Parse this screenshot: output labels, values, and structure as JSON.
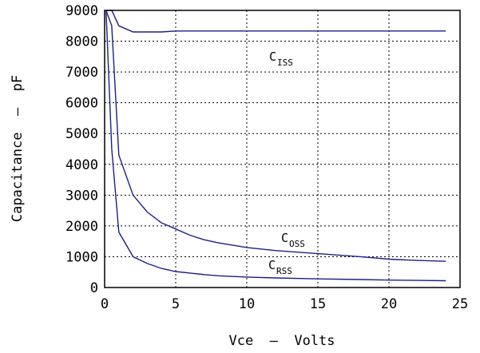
{
  "chart_data": {
    "type": "line",
    "title": "",
    "xlabel": "Vce  —  Volts",
    "ylabel": "Capacitance  —  pF",
    "xlim": [
      0,
      25
    ],
    "ylim": [
      0,
      9000
    ],
    "xticks": [
      0,
      5,
      10,
      15,
      20,
      25
    ],
    "yticks": [
      0,
      1000,
      2000,
      3000,
      4000,
      5000,
      6000,
      7000,
      8000,
      9000
    ],
    "grid": true,
    "legend": "none",
    "line_color": "#1e1e8a",
    "series": [
      {
        "name": "Ciss",
        "label_main": "C",
        "label_sub": "ISS",
        "points": [
          [
            0.1,
            9000
          ],
          [
            0.5,
            9000
          ],
          [
            1,
            8500
          ],
          [
            2,
            8300
          ],
          [
            3,
            8300
          ],
          [
            4,
            8300
          ],
          [
            5,
            8330
          ],
          [
            7,
            8330
          ],
          [
            10,
            8330
          ],
          [
            15,
            8330
          ],
          [
            20,
            8330
          ],
          [
            24,
            8330
          ]
        ]
      },
      {
        "name": "Coss",
        "label_main": "C",
        "label_sub": "OSS",
        "points": [
          [
            0.1,
            9000
          ],
          [
            0.5,
            8500
          ],
          [
            1,
            4300
          ],
          [
            2,
            3000
          ],
          [
            3,
            2450
          ],
          [
            4,
            2100
          ],
          [
            5,
            1900
          ],
          [
            6,
            1700
          ],
          [
            7,
            1550
          ],
          [
            8,
            1450
          ],
          [
            10,
            1300
          ],
          [
            12,
            1200
          ],
          [
            15,
            1100
          ],
          [
            18,
            1000
          ],
          [
            20,
            920
          ],
          [
            22,
            880
          ],
          [
            24,
            850
          ]
        ]
      },
      {
        "name": "Crss",
        "label_main": "C",
        "label_sub": "RSS",
        "points": [
          [
            0.1,
            9000
          ],
          [
            0.5,
            4500
          ],
          [
            1,
            1800
          ],
          [
            2,
            1000
          ],
          [
            3,
            780
          ],
          [
            4,
            620
          ],
          [
            5,
            520
          ],
          [
            6,
            470
          ],
          [
            7,
            420
          ],
          [
            8,
            380
          ],
          [
            10,
            340
          ],
          [
            12,
            310
          ],
          [
            15,
            280
          ],
          [
            18,
            260
          ],
          [
            20,
            240
          ],
          [
            22,
            230
          ],
          [
            24,
            220
          ]
        ]
      }
    ]
  }
}
